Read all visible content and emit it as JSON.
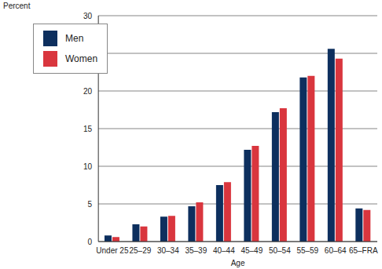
{
  "chart_data": {
    "type": "bar",
    "y_label": "Percent",
    "x_label": "Age",
    "categories": [
      "Under 25",
      "25–29",
      "30–34",
      "35–39",
      "40–44",
      "45–49",
      "50–54",
      "55–59",
      "60–64",
      "65–FRA"
    ],
    "series": [
      {
        "name": "Men",
        "color": "#0d2f5e",
        "values": [
          0.8,
          2.3,
          3.3,
          4.7,
          7.5,
          12.2,
          17.2,
          21.8,
          25.6,
          4.4
        ]
      },
      {
        "name": "Women",
        "color": "#d9363e",
        "values": [
          0.6,
          2.0,
          3.4,
          5.2,
          7.9,
          12.7,
          17.7,
          22.0,
          24.3,
          4.2
        ]
      }
    ],
    "ylim": [
      0,
      30
    ],
    "yticks": [
      0,
      5,
      10,
      15,
      20,
      25,
      30
    ],
    "grid": true,
    "legend": "upper left"
  }
}
